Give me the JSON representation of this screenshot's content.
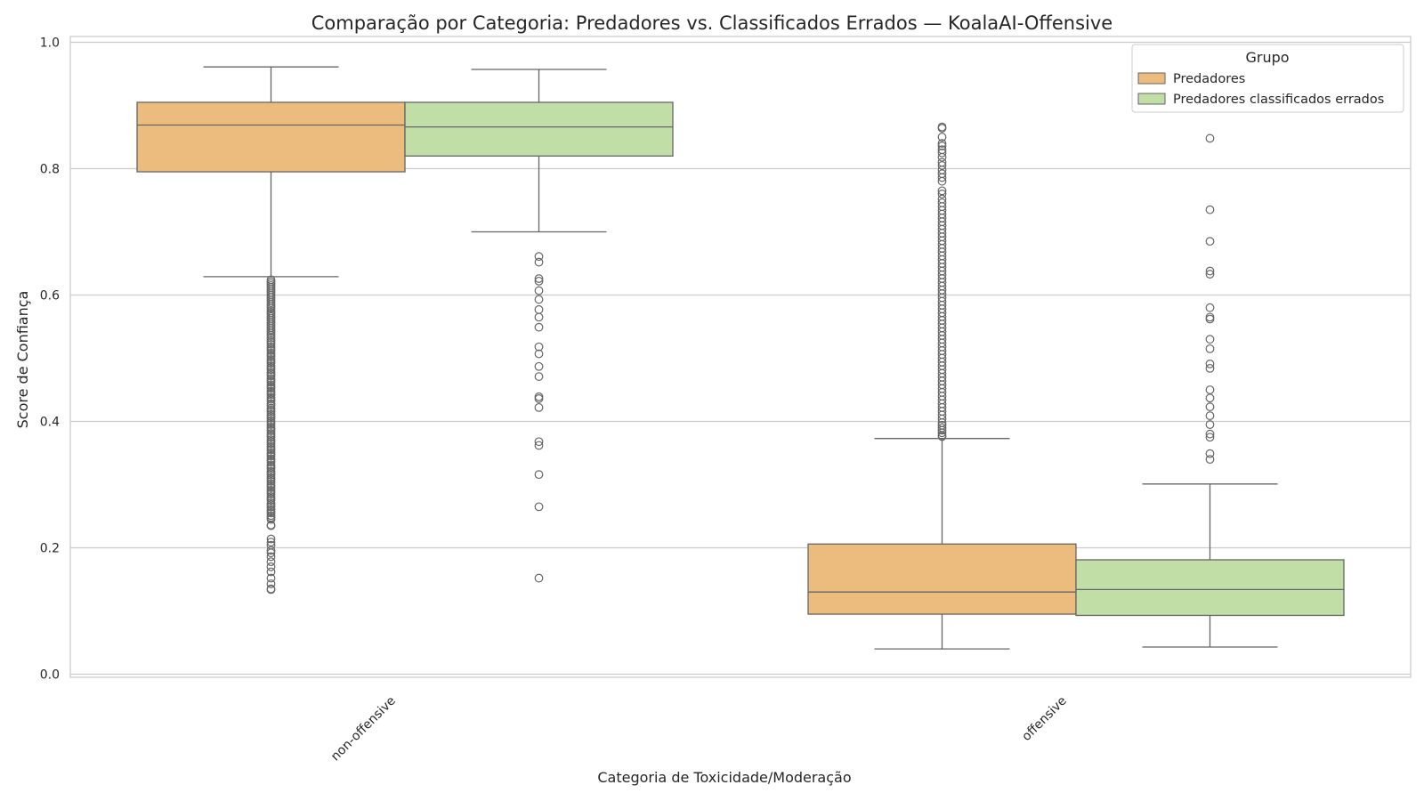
{
  "chart_data": {
    "type": "box",
    "title": "Comparação por Categoria: Predadores vs. Classificados Errados — KoalaAI-Offensive",
    "xlabel": "Categoria de Toxicidade/Moderação",
    "ylabel": "Score de Confiança",
    "ylim": [
      -0.005,
      1.005
    ],
    "yticks": [
      "0.0",
      "0.2",
      "0.4",
      "0.6",
      "0.8",
      "1.0"
    ],
    "categories": [
      "non-offensive",
      "offensive"
    ],
    "grid": true,
    "legend": {
      "title": "Grupo",
      "position": "top-right"
    },
    "series": [
      {
        "name": "Predadores",
        "color": "#ecbb7e",
        "boxes": [
          {
            "category": "non-offensive",
            "whisker_low": 0.629,
            "q1": 0.795,
            "median": 0.869,
            "q3": 0.905,
            "whisker_high": 0.961,
            "outliers": [
              0.624,
              0.621,
              0.618,
              0.615,
              0.612,
              0.609,
              0.606,
              0.603,
              0.6,
              0.597,
              0.594,
              0.591,
              0.588,
              0.585,
              0.582,
              0.579,
              0.575,
              0.572,
              0.569,
              0.566,
              0.563,
              0.56,
              0.557,
              0.554,
              0.551,
              0.548,
              0.545,
              0.542,
              0.539,
              0.536,
              0.532,
              0.528,
              0.525,
              0.522,
              0.518,
              0.515,
              0.512,
              0.508,
              0.505,
              0.502,
              0.498,
              0.495,
              0.492,
              0.488,
              0.485,
              0.482,
              0.478,
              0.475,
              0.472,
              0.468,
              0.465,
              0.462,
              0.458,
              0.455,
              0.452,
              0.448,
              0.445,
              0.442,
              0.438,
              0.435,
              0.432,
              0.428,
              0.425,
              0.421,
              0.418,
              0.415,
              0.411,
              0.408,
              0.405,
              0.401,
              0.398,
              0.395,
              0.391,
              0.388,
              0.385,
              0.381,
              0.378,
              0.375,
              0.371,
              0.368,
              0.365,
              0.361,
              0.358,
              0.355,
              0.351,
              0.348,
              0.345,
              0.341,
              0.338,
              0.335,
              0.331,
              0.328,
              0.325,
              0.321,
              0.318,
              0.315,
              0.311,
              0.308,
              0.305,
              0.301,
              0.298,
              0.295,
              0.291,
              0.288,
              0.285,
              0.281,
              0.278,
              0.275,
              0.271,
              0.268,
              0.265,
              0.261,
              0.258,
              0.255,
              0.251,
              0.248,
              0.245,
              0.236,
              0.235,
              0.214,
              0.209,
              0.204,
              0.196,
              0.192,
              0.186,
              0.178,
              0.17,
              0.162,
              0.152,
              0.143,
              0.135,
              0.134
            ]
          },
          {
            "category": "offensive",
            "whisker_low": 0.04,
            "q1": 0.095,
            "median": 0.13,
            "q3": 0.206,
            "whisker_high": 0.373,
            "outliers": [
              0.866,
              0.864,
              0.85,
              0.84,
              0.836,
              0.83,
              0.825,
              0.818,
              0.81,
              0.805,
              0.798,
              0.792,
              0.786,
              0.78,
              0.765,
              0.76,
              0.752,
              0.746,
              0.74,
              0.734,
              0.728,
              0.722,
              0.716,
              0.71,
              0.704,
              0.698,
              0.692,
              0.686,
              0.68,
              0.674,
              0.668,
              0.662,
              0.656,
              0.65,
              0.644,
              0.638,
              0.632,
              0.626,
              0.62,
              0.614,
              0.608,
              0.602,
              0.596,
              0.59,
              0.584,
              0.578,
              0.572,
              0.566,
              0.56,
              0.554,
              0.548,
              0.542,
              0.536,
              0.53,
              0.524,
              0.518,
              0.512,
              0.506,
              0.5,
              0.494,
              0.488,
              0.482,
              0.476,
              0.47,
              0.464,
              0.458,
              0.452,
              0.446,
              0.44,
              0.434,
              0.428,
              0.422,
              0.416,
              0.41,
              0.404,
              0.398,
              0.394,
              0.39,
              0.386,
              0.382,
              0.378,
              0.376
            ]
          }
        ]
      },
      {
        "name": "Predadores classificados errados",
        "color": "#c0dea6",
        "boxes": [
          {
            "category": "non-offensive",
            "whisker_low": 0.7,
            "q1": 0.82,
            "median": 0.866,
            "q3": 0.905,
            "whisker_high": 0.957,
            "outliers": [
              0.661,
              0.652,
              0.626,
              0.622,
              0.607,
              0.593,
              0.577,
              0.565,
              0.549,
              0.518,
              0.507,
              0.487,
              0.471,
              0.439,
              0.436,
              0.422,
              0.368,
              0.362,
              0.316,
              0.265,
              0.152
            ]
          },
          {
            "category": "offensive",
            "whisker_low": 0.043,
            "q1": 0.093,
            "median": 0.134,
            "q3": 0.181,
            "whisker_high": 0.301,
            "outliers": [
              0.848,
              0.735,
              0.685,
              0.638,
              0.633,
              0.58,
              0.565,
              0.562,
              0.53,
              0.515,
              0.491,
              0.484,
              0.45,
              0.437,
              0.423,
              0.409,
              0.395,
              0.38,
              0.375,
              0.349,
              0.34
            ]
          }
        ]
      }
    ]
  }
}
